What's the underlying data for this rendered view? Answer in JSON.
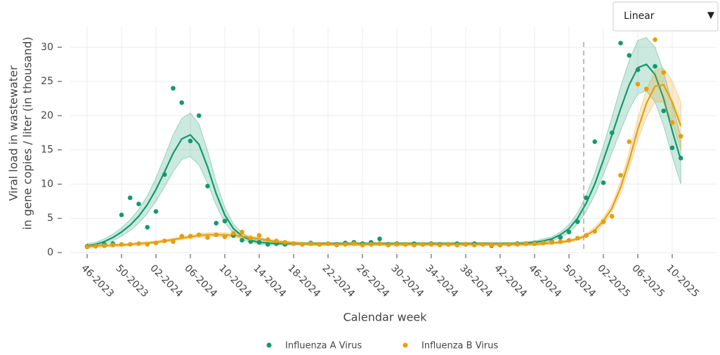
{
  "chart_data": {
    "type": "scatter_trend",
    "y_label_lines": [
      "Viral load in wastewater",
      "in gene copies / liter (in thousand)"
    ],
    "x_label": "Calendar week",
    "scale_selector": {
      "label": "Linear",
      "arrow": "▼"
    },
    "categories": [
      "46-2023",
      null,
      null,
      null,
      "50-2023",
      null,
      null,
      null,
      "02-2024",
      null,
      null,
      null,
      "06-2024",
      null,
      null,
      null,
      "10-2024",
      null,
      null,
      null,
      "14-2024",
      null,
      null,
      null,
      "18-2024",
      null,
      null,
      null,
      "22-2024",
      null,
      null,
      null,
      "26-2024",
      null,
      null,
      null,
      "30-2024",
      null,
      null,
      null,
      "34-2024",
      null,
      null,
      null,
      "38-2024",
      null,
      null,
      null,
      "42-2024",
      null,
      null,
      null,
      "46-2024",
      null,
      null,
      null,
      "50-2024",
      null,
      null,
      null,
      "02-2025",
      null,
      null,
      null,
      "06-2025",
      null,
      null,
      null,
      "10-2025",
      null
    ],
    "ylim": [
      0,
      33
    ],
    "yticks": [
      0,
      5,
      10,
      15,
      20,
      25,
      30
    ],
    "grid": true,
    "series": [
      {
        "name": "Influenza A Virus",
        "color": "#13996f",
        "values": [
          0.9,
          1.0,
          1.2,
          1.3,
          5.5,
          8.0,
          7.1,
          3.7,
          6.0,
          11.4,
          24.0,
          21.9,
          16.3,
          20.0,
          9.7,
          4.3,
          4.6,
          2.5,
          1.8,
          1.6,
          1.5,
          1.2,
          1.3,
          1.2,
          1.3,
          1.2,
          1.4,
          1.2,
          1.3,
          1.2,
          1.4,
          1.5,
          1.3,
          1.5,
          2.0,
          1.2,
          1.3,
          1.2,
          1.3,
          1.2,
          1.3,
          1.2,
          1.2,
          1.3,
          1.2,
          1.3,
          1.2,
          1.0,
          1.1,
          1.2,
          1.3,
          1.3,
          1.4,
          1.5,
          1.6,
          2.2,
          3.0,
          4.5,
          8.0,
          16.2,
          10.2,
          17.5,
          30.6,
          28.8,
          26.7,
          null,
          27.2,
          20.7,
          15.3,
          13.8
        ],
        "trend": [
          1.0,
          1.2,
          1.6,
          2.2,
          3.0,
          4.0,
          5.3,
          7.0,
          9.2,
          11.8,
          14.5,
          16.6,
          17.2,
          15.8,
          12.5,
          8.6,
          5.5,
          3.5,
          2.4,
          1.8,
          1.5,
          1.4,
          1.3,
          1.3,
          1.3,
          1.3,
          1.3,
          1.3,
          1.3,
          1.3,
          1.3,
          1.3,
          1.3,
          1.3,
          1.3,
          1.3,
          1.3,
          1.3,
          1.3,
          1.3,
          1.3,
          1.3,
          1.3,
          1.3,
          1.3,
          1.3,
          1.3,
          1.3,
          1.3,
          1.3,
          1.3,
          1.4,
          1.5,
          1.7,
          2.0,
          2.6,
          3.5,
          5.0,
          7.2,
          10.0,
          13.5,
          17.2,
          21.0,
          24.5,
          27.0,
          27.5,
          26.0,
          22.5,
          17.8,
          13.5
        ],
        "lower": [
          0.7,
          0.9,
          1.2,
          1.7,
          2.4,
          3.2,
          4.3,
          5.7,
          7.5,
          9.6,
          11.8,
          13.6,
          14.0,
          12.8,
          10.1,
          6.9,
          4.4,
          2.8,
          1.9,
          1.5,
          1.2,
          1.1,
          1.1,
          1.1,
          1.1,
          1.1,
          1.1,
          1.1,
          1.1,
          1.1,
          1.1,
          1.1,
          1.1,
          1.1,
          1.1,
          1.1,
          1.1,
          1.1,
          1.1,
          1.1,
          1.1,
          1.1,
          1.1,
          1.1,
          1.1,
          1.1,
          1.1,
          1.1,
          1.1,
          1.1,
          1.1,
          1.2,
          1.3,
          1.4,
          1.7,
          2.2,
          2.9,
          4.2,
          6.0,
          8.4,
          11.4,
          14.6,
          17.8,
          20.9,
          23.2,
          23.6,
          22.0,
          18.5,
          14.0,
          10.0
        ],
        "upper": [
          1.3,
          1.5,
          2.0,
          2.7,
          3.6,
          4.8,
          6.3,
          8.3,
          10.9,
          14.0,
          17.2,
          19.6,
          20.4,
          18.8,
          14.9,
          10.3,
          6.6,
          4.2,
          2.9,
          2.1,
          1.8,
          1.7,
          1.5,
          1.5,
          1.5,
          1.5,
          1.5,
          1.5,
          1.5,
          1.5,
          1.5,
          1.5,
          1.5,
          1.5,
          1.5,
          1.5,
          1.5,
          1.5,
          1.5,
          1.5,
          1.5,
          1.5,
          1.5,
          1.5,
          1.5,
          1.5,
          1.5,
          1.5,
          1.5,
          1.5,
          1.5,
          1.6,
          1.7,
          2.0,
          2.3,
          3.0,
          4.1,
          5.8,
          8.4,
          11.6,
          15.6,
          19.8,
          24.2,
          28.1,
          31.0,
          31.4,
          30.0,
          26.5,
          21.6,
          17.0
        ]
      },
      {
        "name": "Influenza B Virus",
        "color": "#e69f0c",
        "values": [
          0.8,
          0.9,
          1.0,
          1.1,
          1.2,
          1.2,
          1.3,
          1.2,
          1.4,
          1.7,
          1.6,
          2.4,
          2.4,
          2.6,
          2.2,
          2.6,
          2.3,
          2.8,
          3.0,
          2.1,
          2.5,
          1.9,
          1.7,
          1.5,
          1.3,
          1.2,
          1.3,
          1.2,
          1.3,
          1.1,
          1.2,
          1.3,
          1.1,
          1.2,
          1.3,
          1.1,
          1.2,
          1.2,
          1.1,
          1.2,
          1.2,
          1.1,
          1.2,
          1.1,
          1.2,
          1.1,
          1.2,
          1.1,
          1.1,
          1.2,
          1.2,
          1.3,
          1.3,
          1.4,
          1.5,
          1.6,
          1.8,
          2.1,
          2.5,
          3.1,
          4.5,
          5.3,
          11.3,
          16.2,
          24.6,
          23.9,
          31.1,
          26.3,
          19.0,
          17.0
        ],
        "trend": [
          0.9,
          1.0,
          1.0,
          1.1,
          1.1,
          1.2,
          1.3,
          1.4,
          1.5,
          1.7,
          1.9,
          2.1,
          2.3,
          2.5,
          2.6,
          2.6,
          2.6,
          2.5,
          2.4,
          2.2,
          2.0,
          1.8,
          1.6,
          1.5,
          1.4,
          1.3,
          1.2,
          1.2,
          1.2,
          1.2,
          1.2,
          1.2,
          1.2,
          1.2,
          1.2,
          1.2,
          1.2,
          1.2,
          1.2,
          1.2,
          1.2,
          1.2,
          1.2,
          1.2,
          1.2,
          1.2,
          1.2,
          1.2,
          1.2,
          1.2,
          1.2,
          1.2,
          1.2,
          1.3,
          1.4,
          1.5,
          1.7,
          2.0,
          2.5,
          3.3,
          4.6,
          6.5,
          9.5,
          13.5,
          18.0,
          21.8,
          24.3,
          24.5,
          22.0,
          18.5
        ],
        "lower": [
          0.7,
          0.8,
          0.8,
          0.9,
          0.9,
          1.0,
          1.1,
          1.2,
          1.3,
          1.5,
          1.7,
          1.9,
          2.0,
          2.2,
          2.3,
          2.3,
          2.3,
          2.2,
          2.1,
          1.9,
          1.8,
          1.6,
          1.4,
          1.3,
          1.2,
          1.1,
          1.0,
          1.0,
          1.0,
          1.0,
          1.0,
          1.0,
          1.0,
          1.0,
          1.0,
          1.0,
          1.0,
          1.0,
          1.0,
          1.0,
          1.0,
          1.0,
          1.0,
          1.0,
          1.0,
          1.0,
          1.0,
          1.0,
          1.0,
          1.0,
          1.0,
          1.0,
          1.0,
          1.1,
          1.2,
          1.3,
          1.5,
          1.8,
          2.2,
          2.9,
          4.1,
          5.9,
          8.6,
          12.3,
          16.4,
          19.8,
          22.0,
          22.0,
          19.0,
          15.0
        ],
        "upper": [
          1.1,
          1.2,
          1.2,
          1.3,
          1.3,
          1.4,
          1.5,
          1.6,
          1.7,
          1.9,
          2.1,
          2.3,
          2.6,
          2.8,
          2.9,
          2.9,
          2.9,
          2.8,
          2.7,
          2.5,
          2.2,
          2.0,
          1.8,
          1.7,
          1.6,
          1.5,
          1.4,
          1.4,
          1.4,
          1.4,
          1.4,
          1.4,
          1.4,
          1.4,
          1.4,
          1.4,
          1.4,
          1.4,
          1.4,
          1.4,
          1.4,
          1.4,
          1.4,
          1.4,
          1.4,
          1.4,
          1.4,
          1.4,
          1.4,
          1.4,
          1.4,
          1.4,
          1.4,
          1.5,
          1.6,
          1.7,
          1.9,
          2.2,
          2.8,
          3.7,
          5.1,
          7.1,
          10.4,
          14.7,
          19.6,
          23.8,
          26.6,
          27.0,
          25.0,
          22.0
        ]
      }
    ]
  }
}
